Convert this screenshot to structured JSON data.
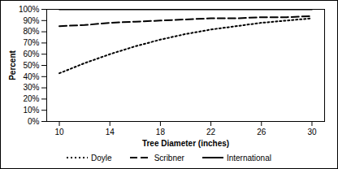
{
  "chart_data": {
    "type": "line",
    "x_label": "Tree Diameter (inches)",
    "y_label": "Percent",
    "x": [
      10,
      12,
      14,
      16,
      18,
      20,
      22,
      24,
      26,
      28,
      30
    ],
    "series": [
      {
        "name": "Doyle",
        "color": "#000000",
        "line_style": "dotted",
        "values": [
          43,
          52,
          60,
          67,
          73,
          78,
          82,
          85,
          88,
          90,
          92
        ]
      },
      {
        "name": "Scribner",
        "color": "#000000",
        "line_style": "dashed",
        "values": [
          85,
          86,
          88,
          89,
          90,
          91,
          92,
          92,
          93,
          93,
          94
        ]
      },
      {
        "name": "International",
        "color": "#000000",
        "line_style": "solid",
        "values": [
          100,
          100,
          100,
          100,
          100,
          100,
          100,
          100,
          100,
          100,
          100
        ]
      }
    ],
    "xlim": [
      9,
      31
    ],
    "xticks": [
      10,
      14,
      18,
      22,
      26,
      30
    ],
    "ylim": [
      0,
      100
    ],
    "yticks": [
      {
        "value": 0,
        "label": "0%"
      },
      {
        "value": 10,
        "label": "10%"
      },
      {
        "value": 20,
        "label": "20%"
      },
      {
        "value": 30,
        "label": "30%"
      },
      {
        "value": 40,
        "label": "40%"
      },
      {
        "value": 50,
        "label": "50%"
      },
      {
        "value": 60,
        "label": "60%"
      },
      {
        "value": 70,
        "label": "70%"
      },
      {
        "value": 80,
        "label": "80%"
      },
      {
        "value": 90,
        "label": "90%"
      },
      {
        "value": 100,
        "label": "100%"
      }
    ],
    "grid": false,
    "legend": "bottom"
  }
}
